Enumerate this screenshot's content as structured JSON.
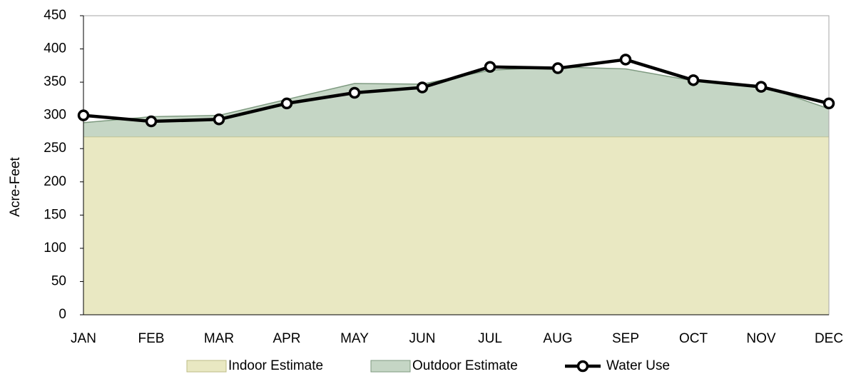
{
  "chart_data": {
    "type": "area",
    "stacked": true,
    "ylabel": "Acre-Feet",
    "categories": [
      "JAN",
      "FEB",
      "MAR",
      "APR",
      "MAY",
      "JUN",
      "JUL",
      "AUG",
      "SEP",
      "OCT",
      "NOV",
      "DEC"
    ],
    "series": [
      {
        "name": "Indoor Estimate",
        "color": "#e9e8c2",
        "edge": "#bdbb86",
        "values": [
          268,
          268,
          268,
          268,
          268,
          268,
          268,
          268,
          268,
          268,
          268,
          268
        ]
      },
      {
        "name": "Outdoor Estimate",
        "color": "#c5d6c5",
        "edge": "#7e9a80",
        "values": [
          21,
          30,
          32,
          56,
          80,
          79,
          100,
          105,
          102,
          84,
          77,
          42
        ]
      },
      {
        "name": "Water Use",
        "type": "line",
        "color": "#000000",
        "values": [
          300,
          291,
          294,
          318,
          334,
          342,
          373,
          371,
          384,
          353,
          343,
          318
        ]
      }
    ],
    "ylim": [
      0,
      450
    ],
    "yticks": [
      0,
      50,
      100,
      150,
      200,
      250,
      300,
      350,
      400,
      450
    ],
    "grid": false
  }
}
